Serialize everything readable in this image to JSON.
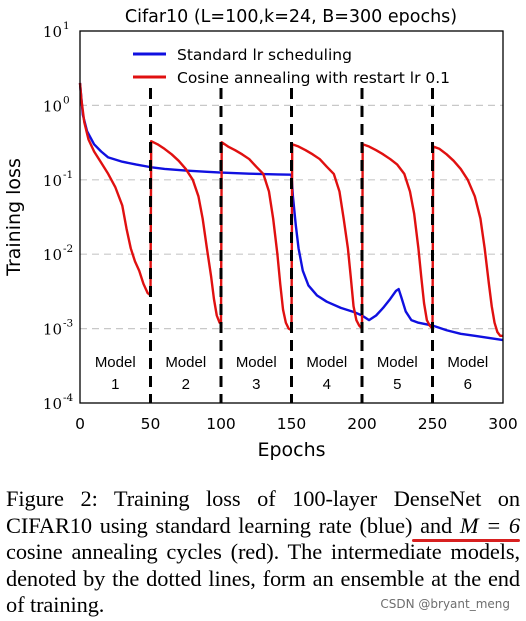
{
  "chart_data": {
    "type": "line",
    "title": "Cifar10 (L=100,k=24, B=300 epochs)",
    "xlabel": "Epochs",
    "ylabel": "Training loss",
    "xlim": [
      0,
      300
    ],
    "ylim": [
      0.0001,
      10
    ],
    "yscale": "log",
    "grid": true,
    "legend_position": "top-right",
    "x_ticks": [
      "0",
      "50",
      "100",
      "150",
      "200",
      "250",
      "300"
    ],
    "y_ticks": [
      {
        "base": "10",
        "exp": "1"
      },
      {
        "base": "10",
        "exp": "0"
      },
      {
        "base": "10",
        "exp": "-1"
      },
      {
        "base": "10",
        "exp": "-2"
      },
      {
        "base": "10",
        "exp": "-3"
      },
      {
        "base": "10",
        "exp": "-4"
      }
    ],
    "snapshot_epochs": [
      50,
      100,
      150,
      200,
      250
    ],
    "models": [
      {
        "name": "Model",
        "num": "1",
        "x": 25
      },
      {
        "name": "Model",
        "num": "2",
        "x": 75
      },
      {
        "name": "Model",
        "num": "3",
        "x": 125
      },
      {
        "name": "Model",
        "num": "4",
        "x": 175
      },
      {
        "name": "Model",
        "num": "5",
        "x": 225
      },
      {
        "name": "Model",
        "num": "6",
        "x": 275
      }
    ],
    "series": [
      {
        "name": "Standard lr scheduling",
        "color": "#1010e0",
        "points": [
          [
            0,
            2.0
          ],
          [
            2,
            0.75
          ],
          [
            5,
            0.45
          ],
          [
            10,
            0.3
          ],
          [
            15,
            0.24
          ],
          [
            20,
            0.2
          ],
          [
            30,
            0.175
          ],
          [
            40,
            0.16
          ],
          [
            50,
            0.148
          ],
          [
            60,
            0.14
          ],
          [
            75,
            0.133
          ],
          [
            90,
            0.128
          ],
          [
            100,
            0.125
          ],
          [
            120,
            0.121
          ],
          [
            140,
            0.118
          ],
          [
            150,
            0.117
          ],
          [
            151,
            0.06
          ],
          [
            153,
            0.025
          ],
          [
            155,
            0.012
          ],
          [
            158,
            0.006
          ],
          [
            162,
            0.0038
          ],
          [
            168,
            0.0028
          ],
          [
            175,
            0.0023
          ],
          [
            185,
            0.0019
          ],
          [
            195,
            0.00165
          ],
          [
            200,
            0.0015
          ],
          [
            205,
            0.0013
          ],
          [
            210,
            0.0015
          ],
          [
            215,
            0.0019
          ],
          [
            220,
            0.0025
          ],
          [
            224,
            0.0032
          ],
          [
            226,
            0.0034
          ],
          [
            228,
            0.0026
          ],
          [
            231,
            0.0017
          ],
          [
            235,
            0.0013
          ],
          [
            240,
            0.0012
          ],
          [
            250,
            0.0011
          ],
          [
            260,
            0.00095
          ],
          [
            270,
            0.00085
          ],
          [
            280,
            0.0008
          ],
          [
            290,
            0.00075
          ],
          [
            300,
            0.0007
          ]
        ]
      },
      {
        "name": "Cosine annealing with restart lr 0.1",
        "color": "#e01010",
        "points": [
          [
            0,
            2.0
          ],
          [
            1,
            1.2
          ],
          [
            3,
            0.6
          ],
          [
            6,
            0.35
          ],
          [
            10,
            0.24
          ],
          [
            15,
            0.17
          ],
          [
            20,
            0.12
          ],
          [
            25,
            0.08
          ],
          [
            30,
            0.045
          ],
          [
            33,
            0.022
          ],
          [
            36,
            0.012
          ],
          [
            39,
            0.008
          ],
          [
            42,
            0.006
          ],
          [
            45,
            0.004
          ],
          [
            48,
            0.003
          ],
          [
            50,
            0.0028
          ],
          [
            50.5,
            0.33
          ],
          [
            55,
            0.3
          ],
          [
            60,
            0.26
          ],
          [
            65,
            0.22
          ],
          [
            70,
            0.18
          ],
          [
            75,
            0.14
          ],
          [
            80,
            0.1
          ],
          [
            84,
            0.06
          ],
          [
            87,
            0.03
          ],
          [
            90,
            0.012
          ],
          [
            93,
            0.005
          ],
          [
            95,
            0.0025
          ],
          [
            97,
            0.0015
          ],
          [
            99,
            0.0012
          ],
          [
            100,
            0.0012
          ],
          [
            100.5,
            0.32
          ],
          [
            105,
            0.28
          ],
          [
            110,
            0.25
          ],
          [
            115,
            0.22
          ],
          [
            120,
            0.19
          ],
          [
            125,
            0.15
          ],
          [
            130,
            0.12
          ],
          [
            134,
            0.07
          ],
          [
            137,
            0.03
          ],
          [
            140,
            0.01
          ],
          [
            142,
            0.004
          ],
          [
            144,
            0.0018
          ],
          [
            146,
            0.0012
          ],
          [
            148,
            0.001
          ],
          [
            150,
            0.00095
          ],
          [
            150.5,
            0.3
          ],
          [
            155,
            0.28
          ],
          [
            160,
            0.25
          ],
          [
            165,
            0.22
          ],
          [
            170,
            0.19
          ],
          [
            175,
            0.15
          ],
          [
            180,
            0.12
          ],
          [
            184,
            0.07
          ],
          [
            187,
            0.03
          ],
          [
            190,
            0.012
          ],
          [
            192,
            0.005
          ],
          [
            194,
            0.002
          ],
          [
            196,
            0.0013
          ],
          [
            198,
            0.0011
          ],
          [
            200,
            0.001
          ],
          [
            200.5,
            0.3
          ],
          [
            205,
            0.28
          ],
          [
            210,
            0.25
          ],
          [
            215,
            0.22
          ],
          [
            220,
            0.19
          ],
          [
            225,
            0.16
          ],
          [
            230,
            0.12
          ],
          [
            234,
            0.07
          ],
          [
            237,
            0.035
          ],
          [
            240,
            0.012
          ],
          [
            242,
            0.005
          ],
          [
            244,
            0.0022
          ],
          [
            246,
            0.0013
          ],
          [
            248,
            0.0011
          ],
          [
            250,
            0.001
          ],
          [
            250.5,
            0.28
          ],
          [
            255,
            0.26
          ],
          [
            260,
            0.22
          ],
          [
            265,
            0.18
          ],
          [
            270,
            0.14
          ],
          [
            275,
            0.1
          ],
          [
            280,
            0.06
          ],
          [
            284,
            0.03
          ],
          [
            287,
            0.012
          ],
          [
            290,
            0.004
          ],
          [
            292,
            0.002
          ],
          [
            294,
            0.0012
          ],
          [
            296,
            0.0009
          ],
          [
            298,
            0.0008
          ],
          [
            300,
            0.0008
          ]
        ]
      }
    ]
  },
  "caption": {
    "text_before": "Figure 2: Training loss of 100-layer DenseNet on CIFAR10 using standard learning rate (blue) and ",
    "math": "M = 6",
    "text_after": " cosine annealing cycles (red). The intermediate models, denoted by the dotted lines, form an ensemble at the end of training."
  },
  "watermark": "CSDN @bryant_meng",
  "colors": {
    "grid": "#c8c8c8",
    "annotation": "#d82020"
  }
}
